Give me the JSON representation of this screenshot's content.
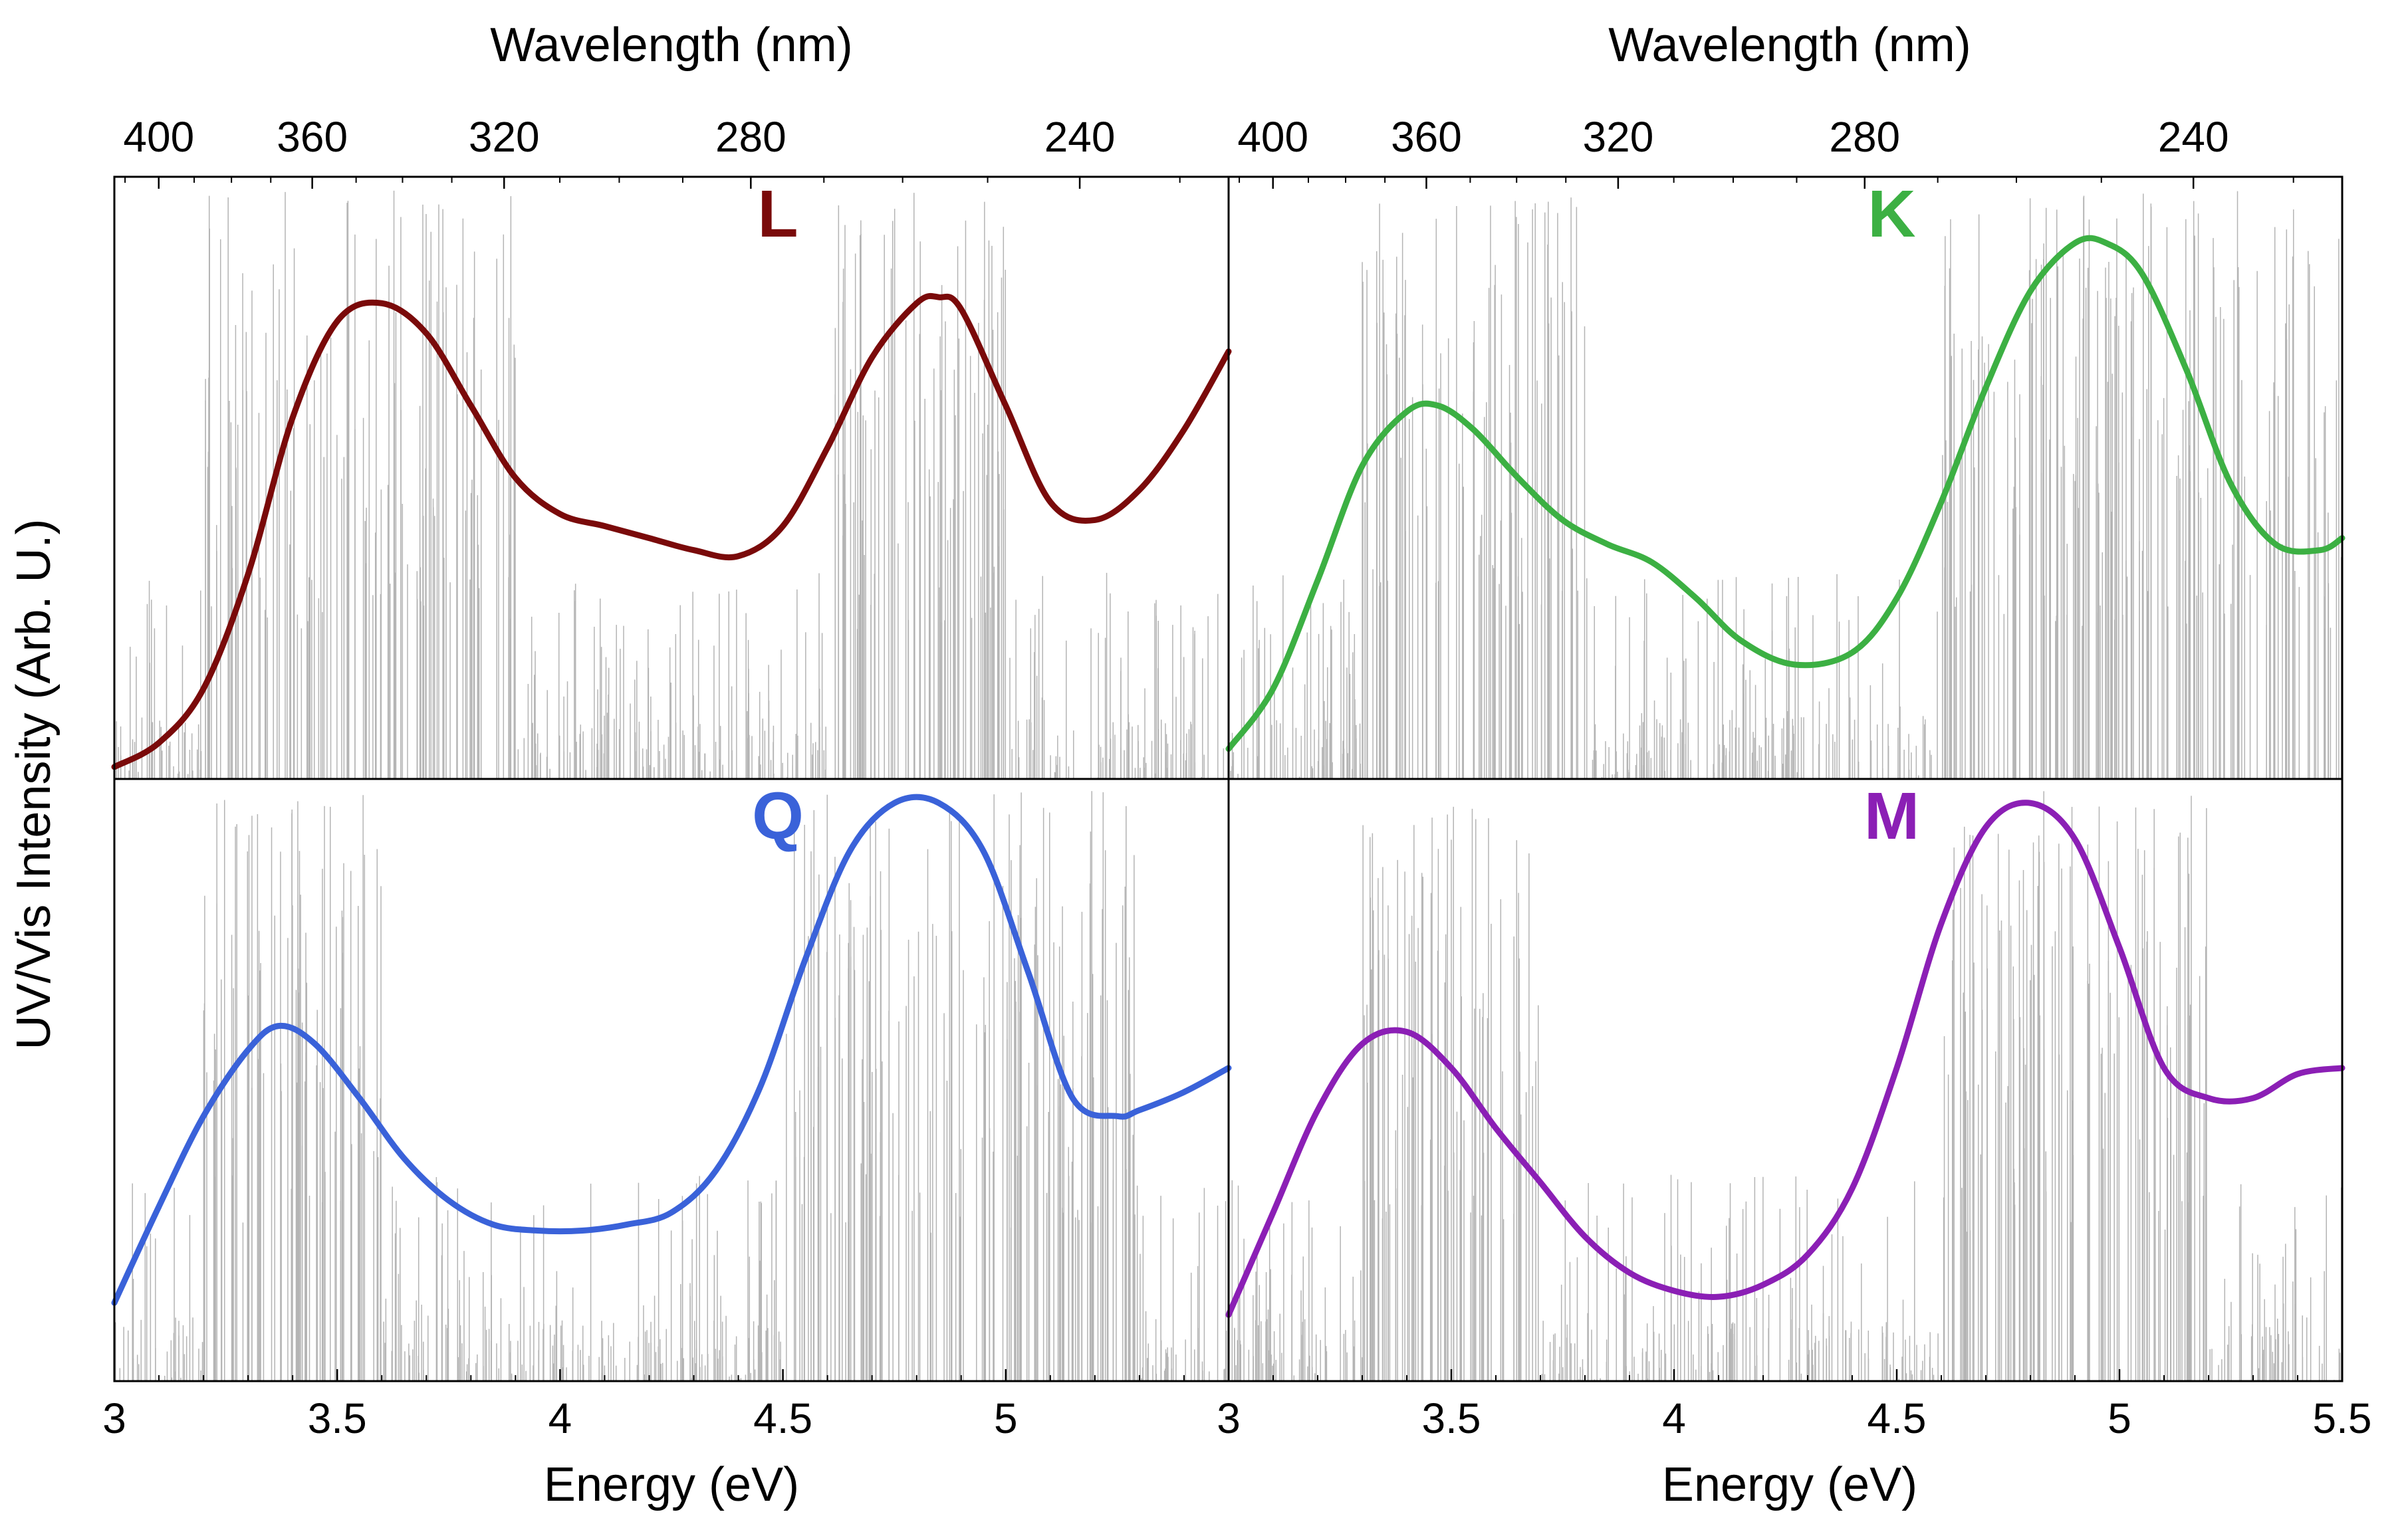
{
  "figure": {
    "ylabel": "UV/Vis Intensity (Arb. U.)",
    "xlabel": "Energy (eV)",
    "top_axis_title": "Wavelength (nm)"
  },
  "chart_data": [
    {
      "type": "line",
      "panel": "L",
      "title": "L",
      "color": "#7a0a0a",
      "xlabel": "Energy (eV)",
      "x2label": "Wavelength (nm)",
      "ylabel": "UV/Vis Intensity (Arb. U.)",
      "xlim": [
        3.0,
        5.5
      ],
      "ylim": [
        0,
        1
      ],
      "xticks": [
        "3",
        "3.5",
        "4",
        "4.5",
        "5"
      ],
      "x2ticks": [
        "400",
        "360",
        "320",
        "280",
        "240"
      ],
      "grid": false,
      "series": [
        {
          "name": "L",
          "x": [
            3.0,
            3.1,
            3.2,
            3.3,
            3.4,
            3.5,
            3.6,
            3.7,
            3.8,
            3.9,
            4.0,
            4.1,
            4.2,
            4.3,
            4.4,
            4.5,
            4.6,
            4.7,
            4.8,
            4.85,
            4.9,
            5.0,
            5.1,
            5.2,
            5.3,
            5.4,
            5.5
          ],
          "y": [
            0.02,
            0.06,
            0.15,
            0.34,
            0.6,
            0.76,
            0.79,
            0.74,
            0.62,
            0.5,
            0.44,
            0.42,
            0.4,
            0.38,
            0.37,
            0.42,
            0.55,
            0.7,
            0.79,
            0.8,
            0.78,
            0.62,
            0.46,
            0.43,
            0.48,
            0.58,
            0.71
          ]
        }
      ],
      "sticks": {
        "color": "#b4b4b4",
        "x_range": [
          3.0,
          5.5
        ],
        "dense_regions": [
          [
            3.2,
            3.9
          ],
          [
            4.6,
            5.0
          ]
        ]
      }
    },
    {
      "type": "line",
      "panel": "K",
      "title": "K",
      "color": "#3cb043",
      "xlabel": "Energy (eV)",
      "x2label": "Wavelength (nm)",
      "xlim": [
        3.0,
        5.5
      ],
      "ylim": [
        0,
        1
      ],
      "xticks": [
        "3",
        "3.5",
        "4",
        "4.5",
        "5",
        "5.5"
      ],
      "x2ticks": [
        "400",
        "360",
        "320",
        "280",
        "240"
      ],
      "grid": false,
      "series": [
        {
          "name": "K",
          "x": [
            3.0,
            3.1,
            3.2,
            3.3,
            3.4,
            3.47,
            3.55,
            3.65,
            3.75,
            3.85,
            3.95,
            4.05,
            4.15,
            4.27,
            4.4,
            4.5,
            4.6,
            4.7,
            4.8,
            4.9,
            4.97,
            5.05,
            5.15,
            5.25,
            5.35,
            5.45,
            5.5
          ],
          "y": [
            0.05,
            0.15,
            0.33,
            0.52,
            0.61,
            0.62,
            0.58,
            0.5,
            0.43,
            0.39,
            0.36,
            0.3,
            0.23,
            0.19,
            0.21,
            0.3,
            0.46,
            0.65,
            0.81,
            0.89,
            0.89,
            0.84,
            0.68,
            0.49,
            0.39,
            0.38,
            0.4
          ]
        }
      ],
      "sticks": {
        "color": "#b4b4b4",
        "x_range": [
          3.0,
          5.5
        ],
        "dense_regions": [
          [
            3.3,
            3.8
          ],
          [
            4.6,
            5.5
          ]
        ]
      }
    },
    {
      "type": "line",
      "panel": "Q",
      "title": "Q",
      "color": "#3a62d9",
      "xlabel": "Energy (eV)",
      "xlim": [
        3.0,
        5.5
      ],
      "ylim": [
        0,
        1
      ],
      "xticks": [
        "3",
        "3.5",
        "4",
        "4.5",
        "5"
      ],
      "grid": false,
      "series": [
        {
          "name": "Q",
          "x": [
            3.0,
            3.1,
            3.2,
            3.3,
            3.37,
            3.45,
            3.55,
            3.65,
            3.75,
            3.85,
            3.95,
            4.05,
            4.15,
            4.25,
            4.35,
            4.45,
            4.55,
            4.65,
            4.75,
            4.85,
            4.95,
            5.05,
            5.15,
            5.25,
            5.3,
            5.4,
            5.5
          ],
          "y": [
            0.13,
            0.29,
            0.44,
            0.55,
            0.59,
            0.56,
            0.47,
            0.37,
            0.3,
            0.26,
            0.25,
            0.25,
            0.26,
            0.28,
            0.35,
            0.49,
            0.7,
            0.88,
            0.96,
            0.96,
            0.88,
            0.68,
            0.47,
            0.44,
            0.45,
            0.48,
            0.52
          ]
        }
      ],
      "sticks": {
        "color": "#b4b4b4",
        "x_range": [
          3.0,
          5.5
        ],
        "dense_regions": [
          [
            3.2,
            3.6
          ],
          [
            4.5,
            5.3
          ]
        ]
      }
    },
    {
      "type": "line",
      "panel": "M",
      "title": "M",
      "color": "#8b1fb5",
      "xlabel": "Energy (eV)",
      "xlim": [
        3.0,
        5.5
      ],
      "ylim": [
        0,
        1
      ],
      "xticks": [
        "3",
        "3.5",
        "4",
        "4.5",
        "5",
        "5.5"
      ],
      "grid": false,
      "series": [
        {
          "name": "M",
          "x": [
            3.0,
            3.1,
            3.2,
            3.3,
            3.4,
            3.5,
            3.6,
            3.7,
            3.8,
            3.9,
            4.0,
            4.1,
            4.2,
            4.3,
            4.4,
            4.5,
            4.6,
            4.7,
            4.8,
            4.9,
            5.0,
            5.1,
            5.2,
            5.3,
            5.4,
            5.5
          ],
          "y": [
            0.11,
            0.28,
            0.45,
            0.56,
            0.58,
            0.52,
            0.42,
            0.33,
            0.24,
            0.18,
            0.15,
            0.14,
            0.16,
            0.21,
            0.32,
            0.52,
            0.76,
            0.92,
            0.96,
            0.9,
            0.72,
            0.52,
            0.47,
            0.47,
            0.51,
            0.52
          ]
        }
      ],
      "sticks": {
        "color": "#b4b4b4",
        "x_range": [
          3.0,
          5.5
        ],
        "dense_regions": [
          [
            3.3,
            3.7
          ],
          [
            4.6,
            5.2
          ]
        ]
      }
    }
  ]
}
